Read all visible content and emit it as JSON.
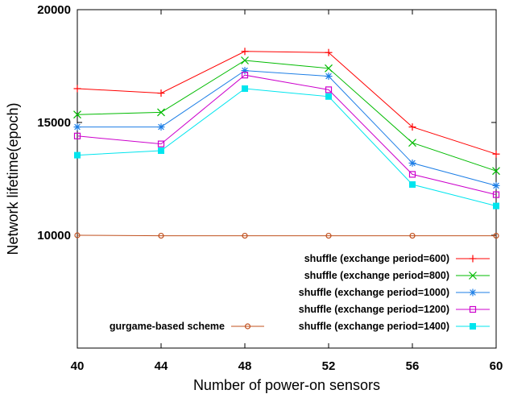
{
  "chart_data": {
    "type": "line",
    "xlabel": "Number of power-on sensors",
    "ylabel": "Network lifetime(epoch)",
    "x": [
      40,
      44,
      48,
      52,
      56,
      60
    ],
    "xlim": [
      40,
      60
    ],
    "ylim": [
      5000,
      20000
    ],
    "x_ticks": [
      "40",
      "44",
      "48",
      "52",
      "56",
      "60"
    ],
    "y_ticks": [
      "10000",
      "15000",
      "20000"
    ],
    "grid": false,
    "legend": "bottom-right",
    "series": [
      {
        "name": "shuffle (exchange period=600)",
        "color": "#ff0000",
        "marker": "plus",
        "values": [
          16500,
          16300,
          18150,
          18100,
          14800,
          13600
        ]
      },
      {
        "name": "shuffle (exchange period=800)",
        "color": "#00bb00",
        "marker": "cross",
        "values": [
          15350,
          15450,
          17750,
          17400,
          14100,
          12850
        ]
      },
      {
        "name": "shuffle (exchange period=1000)",
        "color": "#1e7fe6",
        "marker": "star",
        "values": [
          14800,
          14800,
          17300,
          17050,
          13200,
          12200
        ]
      },
      {
        "name": "shuffle (exchange period=1200)",
        "color": "#cc00cc",
        "marker": "square-open",
        "values": [
          14400,
          14050,
          17100,
          16450,
          12700,
          11800
        ]
      },
      {
        "name": "shuffle (exchange period=1400)",
        "color": "#00e5ee",
        "marker": "square-filled",
        "values": [
          13550,
          13750,
          16500,
          16150,
          12250,
          11300
        ]
      },
      {
        "name": "gurgame-based scheme",
        "color": "#c0501e",
        "marker": "circle-open",
        "values": [
          10000,
          9980,
          9980,
          9980,
          9980,
          9980
        ]
      }
    ]
  }
}
